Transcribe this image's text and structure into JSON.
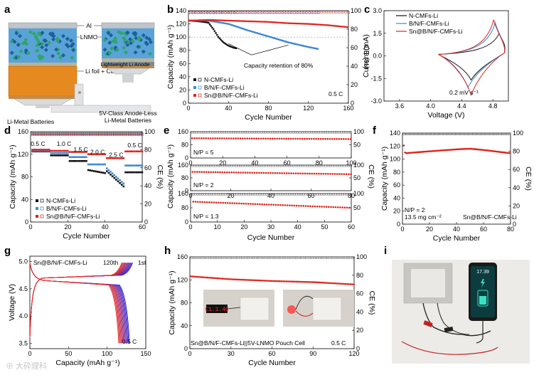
{
  "panels": {
    "a": {
      "label": "a",
      "tags": [
        "Al",
        "LNMO",
        "Lightweight Li Anode",
        "Li foil + Cu"
      ],
      "caption_left": "Li-Metal Batteries",
      "caption_right": "5V-Class Anode-Less Li-Metal Batteries"
    },
    "b": {
      "label": "b",
      "annotation": "Capacity retention of 80%",
      "rate": "0.5 C"
    },
    "c": {
      "label": "c",
      "annotation": "0.2 mV s⁻¹"
    },
    "d": {
      "label": "d",
      "rate_labels": [
        "0.5 C",
        "1.0 C",
        "1.5 C",
        "2.0 C",
        "2.5 C",
        "0.5 C"
      ]
    },
    "e": {
      "label": "e",
      "np_labels": [
        "N/P = 5",
        "N/P = 2",
        "N/P = 1.3"
      ]
    },
    "f": {
      "label": "f",
      "note1": "N/P = 2",
      "note2": "13.5 mg cm⁻²",
      "note3": "Sn@B/N/F-CMFs-Li"
    },
    "g": {
      "label": "g",
      "cell": "Sn@B/N/F-CMFs-Li",
      "cycle_last": "120th",
      "cycle_first": "1st",
      "rate": "0.5 C"
    },
    "h": {
      "label": "h",
      "cell": "Sn@B/N/F-CMFs-Li||5V-LNMO Pouch Cell",
      "rate": "0.5 C",
      "device_text": "C1.1.4C"
    },
    "i": {
      "label": "i",
      "phone_value": "17.39"
    }
  },
  "legends": {
    "series": [
      "N-CMFs-Li",
      "B/N/F-CMFs-Li",
      "Sn@B/N/F-CMFs-Li"
    ]
  },
  "axes": {
    "capacity": "Capacity (mAh g⁻¹)",
    "ce": "CE (%)",
    "cycle": "Cycle Number",
    "current": "Current (mA)",
    "voltage_x": "Voltage (V)",
    "voltage_y": "Voltage (V)",
    "capacity_x": "Capacity (mAh g⁻¹)"
  },
  "colors": {
    "black": "#111111",
    "blue": "#3a88d6",
    "red": "#e0231c"
  },
  "watermark": "⊕ 大砕理科",
  "chart_data": [
    {
      "id": "b",
      "type": "scatter",
      "xlabel": "Cycle Number",
      "ylabel": "Capacity (mAh g⁻¹)",
      "y2label": "CE (%)",
      "xlim": [
        0,
        160
      ],
      "ylim": [
        0,
        140
      ],
      "y2lim": [
        0,
        100
      ],
      "xticks": [
        0,
        40,
        80,
        120,
        160
      ],
      "yticks": [
        0,
        20,
        40,
        60,
        80,
        100,
        120,
        140
      ],
      "y2ticks": [
        0,
        20,
        40,
        60,
        80,
        100
      ],
      "series": [
        {
          "name": "N-CMFs-Li",
          "x": [
            1,
            10,
            20,
            25,
            30,
            35,
            40,
            45,
            48
          ],
          "y": [
            125,
            124,
            122,
            112,
            100,
            92,
            87,
            84,
            83
          ],
          "ce": 98
        },
        {
          "name": "B/N/F-CMFs-Li",
          "x": [
            1,
            20,
            40,
            60,
            80,
            100,
            120,
            130
          ],
          "y": [
            125,
            125,
            120,
            110,
            101,
            92,
            85,
            82
          ],
          "ce": 98
        },
        {
          "name": "Sn@B/N/F-CMFs-Li",
          "x": [
            1,
            20,
            40,
            60,
            80,
            100,
            120,
            140,
            160
          ],
          "y": [
            125,
            126,
            125,
            124,
            123,
            121,
            120,
            118,
            115
          ],
          "ce": 99
        }
      ]
    },
    {
      "id": "c",
      "type": "line",
      "xlabel": "Voltage (V)",
      "ylabel": "Current (mA)",
      "xlim": [
        3.4,
        5.0
      ],
      "ylim": [
        -3.0,
        3.0
      ],
      "xticks": [
        3.6,
        4.0,
        4.4,
        4.8
      ],
      "yticks": [
        -3.0,
        -1.5,
        0.0,
        1.5,
        3.0
      ],
      "series": [
        {
          "name": "N-CMFs-Li",
          "peak_ox": [
            4.88,
            1.5
          ],
          "peak_red": [
            4.52,
            -1.6
          ]
        },
        {
          "name": "B/N/F-CMFs-Li",
          "peak_ox": [
            4.83,
            2.2
          ],
          "peak_red": [
            4.48,
            -2.1
          ]
        },
        {
          "name": "Sn@B/N/F-CMFs-Li",
          "peak_ox": [
            4.81,
            2.4
          ],
          "peak_red": [
            4.52,
            -2.6
          ]
        }
      ]
    },
    {
      "id": "d",
      "type": "scatter",
      "xlabel": "Cycle Number",
      "ylabel": "Capacity (mAh g⁻¹)",
      "y2label": "CE (%)",
      "xlim": [
        0,
        60
      ],
      "ylim": [
        0,
        160
      ],
      "y2lim": [
        0,
        100
      ],
      "xticks": [
        0,
        20,
        40,
        60
      ],
      "yticks": [
        0,
        40,
        80,
        120,
        160
      ],
      "y2ticks": [
        0,
        20,
        40,
        60,
        80,
        100
      ],
      "series": [
        {
          "name": "N-CMFs-Li",
          "values_by_step": [
            125,
            118,
            108,
            92,
            75,
            88
          ]
        },
        {
          "name": "B/N/F-CMFs-Li",
          "values_by_step": [
            126,
            122,
            115,
            102,
            80,
            100
          ]
        },
        {
          "name": "Sn@B/N/F-CMFs-Li",
          "values_by_step": [
            128,
            126,
            124,
            120,
            113,
            125
          ]
        }
      ]
    },
    {
      "id": "e",
      "type": "scatter",
      "xlabel": "Cycle Number",
      "ylabel": "Capacity (mAh g⁻¹)",
      "y2label": "CE (%)",
      "subplots": [
        {
          "np": "N/P = 5",
          "xlim": [
            0,
            100
          ],
          "ylim": [
            0,
            160
          ],
          "xticks": [
            0,
            20,
            40,
            60,
            80,
            100
          ],
          "yticks": [
            0,
            80,
            160
          ],
          "capacity_start": 120,
          "capacity_end": 115
        },
        {
          "np": "N/P = 2",
          "xlim": [
            0,
            80
          ],
          "ylim": [
            0,
            160
          ],
          "xticks": [
            0,
            20,
            40,
            60,
            80
          ],
          "yticks": [
            0,
            80,
            160
          ],
          "capacity_start": 118,
          "capacity_end": 103
        },
        {
          "np": "N/P = 1.3",
          "xlim": [
            0,
            60
          ],
          "ylim": [
            0,
            160
          ],
          "xticks": [
            0,
            10,
            20,
            30,
            40,
            50,
            60
          ],
          "yticks": [
            0,
            80,
            160
          ],
          "capacity_start": 115,
          "capacity_end": 80
        }
      ]
    },
    {
      "id": "f",
      "type": "scatter",
      "xlabel": "Cycle Number",
      "ylabel": "Capacity (mAh g⁻¹)",
      "y2label": "CE (%)",
      "xlim": [
        0,
        80
      ],
      "ylim": [
        0,
        140
      ],
      "y2lim": [
        0,
        100
      ],
      "xticks": [
        0,
        20,
        40,
        60,
        80
      ],
      "yticks": [
        0,
        20,
        40,
        60,
        80,
        100,
        120,
        140
      ],
      "y2ticks": [
        0,
        20,
        40,
        60,
        80,
        100
      ],
      "series": [
        {
          "name": "Sn@B/N/F-CMFs-Li",
          "x": [
            1,
            2,
            20,
            40,
            50,
            60,
            80
          ],
          "y": [
            121,
            109,
            112,
            115,
            116,
            114,
            109
          ],
          "ce": 99
        }
      ]
    },
    {
      "id": "g",
      "type": "line",
      "xlabel": "Capacity (mAh g⁻¹)",
      "ylabel": "Voltage (V)",
      "xlim": [
        0,
        150
      ],
      "ylim": [
        3.4,
        5.1
      ],
      "xticks": [
        0,
        50,
        100,
        150
      ],
      "yticks": [
        3.5,
        4.0,
        4.5,
        5.0
      ],
      "plateau_charge": 4.7,
      "plateau_discharge": 4.65,
      "cycles": [
        "1st",
        "120th"
      ]
    },
    {
      "id": "h",
      "type": "scatter",
      "xlabel": "Cycle Number",
      "ylabel": "Capacity (mAh g⁻¹)",
      "y2label": "CE (%)",
      "xlim": [
        0,
        120
      ],
      "ylim": [
        0,
        160
      ],
      "y2lim": [
        0,
        100
      ],
      "xticks": [
        0,
        30,
        60,
        90,
        120
      ],
      "yticks": [
        0,
        40,
        80,
        120,
        160
      ],
      "y2ticks": [
        0,
        20,
        40,
        60,
        80,
        100
      ],
      "series": [
        {
          "name": "Sn@B/N/F-CMFs-Li",
          "x": [
            1,
            30,
            60,
            90,
            120
          ],
          "y": [
            126,
            121,
            118,
            116,
            112
          ],
          "ce": 99
        }
      ]
    }
  ]
}
